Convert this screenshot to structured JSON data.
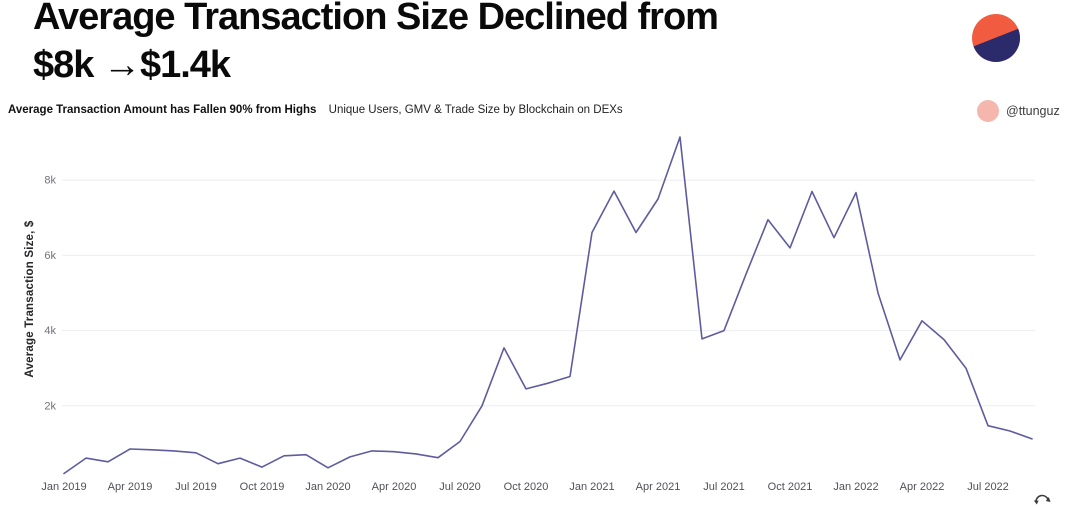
{
  "header": {
    "title_line1": "Average Transaction Size Declined from",
    "title_line2": "$8k →$1.4k",
    "subtitle_bold": "Average Transaction Amount has Fallen 90% from Highs",
    "subtitle_regular": "Unique Users, GMV & Trade Size by Blockchain on DEXs",
    "attribution": "@ttunguz"
  },
  "colors": {
    "line": "#5e5c9e",
    "grid": "#ededf2",
    "logo_orange": "#f15b40",
    "logo_navy": "#2b2a6b",
    "attribution_pink": "#f5b6ae",
    "title_text": "#0a0a0a",
    "axis_tick_text": "#71717b"
  },
  "chart_data": {
    "type": "line",
    "title": "Average Transaction Size Declined from $8k →$1.4k",
    "xlabel": "",
    "ylabel": "Average Transaction Size, $",
    "ylim": [
      0,
      9500
    ],
    "grid": "horizontal",
    "legend": "none",
    "line_color": "#5e5c9e",
    "x": [
      "Jan 2019",
      "Feb 2019",
      "Mar 2019",
      "Apr 2019",
      "May 2019",
      "Jun 2019",
      "Jul 2019",
      "Aug 2019",
      "Sep 2019",
      "Oct 2019",
      "Nov 2019",
      "Dec 2019",
      "Jan 2020",
      "Feb 2020",
      "Mar 2020",
      "Apr 2020",
      "May 2020",
      "Jun 2020",
      "Jul 2020",
      "Aug 2020",
      "Sep 2020",
      "Oct 2020",
      "Nov 2020",
      "Dec 2020",
      "Jan 2021",
      "Feb 2021",
      "Mar 2021",
      "Apr 2021",
      "May 2021",
      "Jun 2021",
      "Jul 2021",
      "Aug 2021",
      "Sep 2021",
      "Oct 2021",
      "Nov 2021",
      "Dec 2021",
      "Jan 2022",
      "Feb 2022",
      "Mar 2022",
      "Apr 2022",
      "May 2022",
      "Jun 2022",
      "Jul 2022",
      "Aug 2022",
      "Sep 2022"
    ],
    "values": [
      200,
      610,
      510,
      850,
      830,
      800,
      750,
      460,
      610,
      370,
      670,
      700,
      350,
      640,
      800,
      780,
      720,
      620,
      1050,
      2000,
      3540,
      2450,
      2600,
      2780,
      6610,
      7710,
      6610,
      7500,
      9150,
      3780,
      4000,
      5500,
      6950,
      6200,
      7700,
      6470,
      7670,
      5000,
      3220,
      4260,
      3760,
      3000,
      1470,
      1330,
      1120
    ],
    "x_tick_labels": [
      "Jan 2019",
      "Apr 2019",
      "Jul 2019",
      "Oct 2019",
      "Jan 2020",
      "Apr 2020",
      "Jul 2020",
      "Oct 2020",
      "Jan 2021",
      "Apr 2021",
      "Jul 2021",
      "Oct 2021",
      "Jan 2022",
      "Apr 2022",
      "Jul 2022"
    ],
    "x_tick_every": 3,
    "y_ticks": [
      {
        "value": 2000,
        "label": "2k"
      },
      {
        "value": 4000,
        "label": "4k"
      },
      {
        "value": 6000,
        "label": "6k"
      },
      {
        "value": 8000,
        "label": "8k"
      }
    ]
  }
}
